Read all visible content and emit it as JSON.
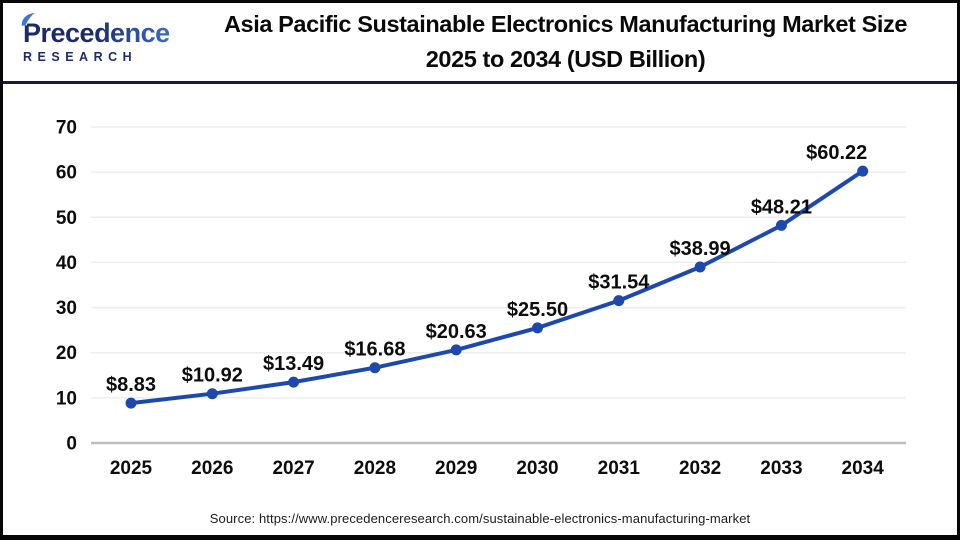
{
  "header": {
    "logo": {
      "name": "Precedence",
      "subtitle": "RESEARCH"
    },
    "title_line1": "Asia Pacific Sustainable Electronics Manufacturing Market Size",
    "title_line2": "2025 to 2034 (USD Billion)"
  },
  "chart_data": {
    "type": "line",
    "title": "Asia Pacific Sustainable Electronics Manufacturing Market Size 2025 to 2034 (USD Billion)",
    "categories": [
      "2025",
      "2026",
      "2027",
      "2028",
      "2029",
      "2030",
      "2031",
      "2032",
      "2033",
      "2034"
    ],
    "values": [
      8.83,
      10.92,
      13.49,
      16.68,
      20.63,
      25.5,
      31.54,
      38.99,
      48.21,
      60.22
    ],
    "point_labels": [
      "$8.83",
      "$10.92",
      "$13.49",
      "$16.68",
      "$20.63",
      "$25.50",
      "$31.54",
      "$38.99",
      "$48.21",
      "$60.22"
    ],
    "xlabel": "",
    "ylabel": "",
    "ylim": [
      0,
      70
    ],
    "yticks": [
      0,
      10,
      20,
      30,
      40,
      50,
      60,
      70
    ],
    "grid": true,
    "legend_position": "none",
    "line_color": "#1e49ac",
    "marker": "circle"
  },
  "footer": {
    "source": "Source: https://www.precedenceresearch.com/sustainable-electronics-manufacturing-market"
  },
  "colors": {
    "divider_navy": "#141c42",
    "logo_dark": "#1b2a6b",
    "logo_light": "#3e73d8",
    "grid_line": "#ededed",
    "axis_line": "#bdbdbd",
    "label_text": "#0d0d0d"
  }
}
